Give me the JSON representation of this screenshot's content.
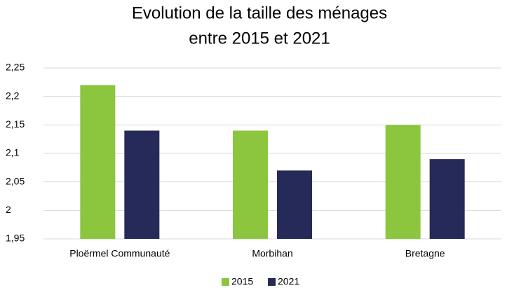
{
  "chart_data": {
    "type": "bar",
    "title": [
      "Evolution de la taille des ménages",
      "entre 2015 et 2021"
    ],
    "categories": [
      "Ploërmel Communauté",
      "Morbihan",
      "Bretagne"
    ],
    "series": [
      {
        "name": "2015",
        "color": "#8cc63e",
        "values": [
          2.22,
          2.14,
          2.15
        ]
      },
      {
        "name": "2021",
        "color": "#262a58",
        "values": [
          2.14,
          2.07,
          2.09
        ]
      }
    ],
    "ylim": [
      1.95,
      2.25
    ],
    "yticks": [
      {
        "value": 1.95,
        "label": "1,95"
      },
      2,
      {
        "value": 2.05,
        "label": "2,05"
      },
      {
        "value": 2.1,
        "label": "2,1"
      },
      {
        "value": 2.15,
        "label": "2,15"
      },
      {
        "value": 2.2,
        "label": "2,2"
      },
      {
        "value": 2.25,
        "label": "2,25"
      }
    ],
    "grid": true,
    "legend": "bottom"
  }
}
